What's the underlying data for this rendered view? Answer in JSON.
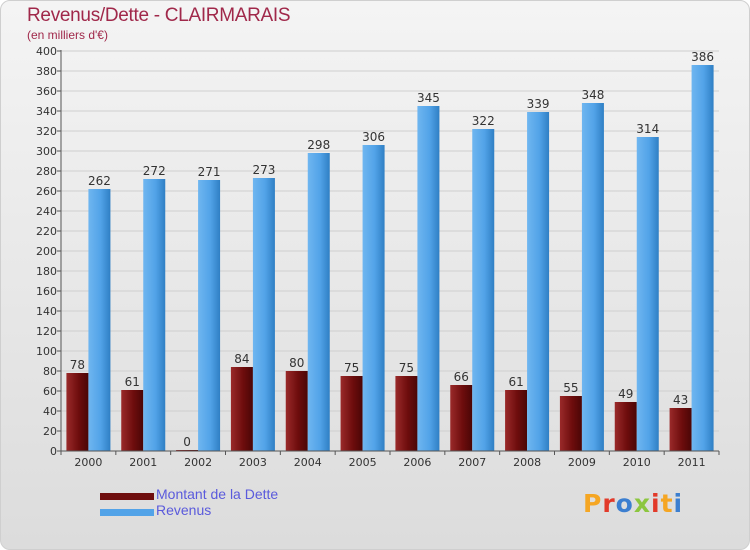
{
  "header": {
    "title": "Revenus/Dette - CLAIRMARAIS",
    "subtitle": "(en milliers d'€)"
  },
  "colors": {
    "dette": "#6e0d0d",
    "revenus": "#52a3e8",
    "title": "#a0284a",
    "legend_text": "#5a5adc"
  },
  "chart_data": {
    "type": "bar",
    "title": "Revenus/Dette - CLAIRMARAIS",
    "subtitle": "(en milliers d'€)",
    "categories": [
      "2000",
      "2001",
      "2002",
      "2003",
      "2004",
      "2005",
      "2006",
      "2007",
      "2008",
      "2009",
      "2010",
      "2011"
    ],
    "series": [
      {
        "name": "Montant de la Dette",
        "values": [
          78,
          61,
          0,
          84,
          80,
          75,
          75,
          66,
          61,
          55,
          49,
          43
        ]
      },
      {
        "name": "Revenus",
        "values": [
          262,
          272,
          271,
          273,
          298,
          306,
          345,
          322,
          339,
          348,
          314,
          386
        ]
      }
    ],
    "ylim": [
      0,
      400
    ],
    "yticks": [
      0,
      20,
      40,
      60,
      80,
      100,
      120,
      140,
      160,
      180,
      200,
      220,
      240,
      260,
      280,
      300,
      320,
      340,
      360,
      380,
      400
    ],
    "grid": true,
    "data_labels": true,
    "legend": "bottom-left"
  },
  "legend": {
    "dette_label": "Montant de la Dette",
    "revenus_label": "Revenus"
  },
  "logo": {
    "text": "Proxiti"
  }
}
